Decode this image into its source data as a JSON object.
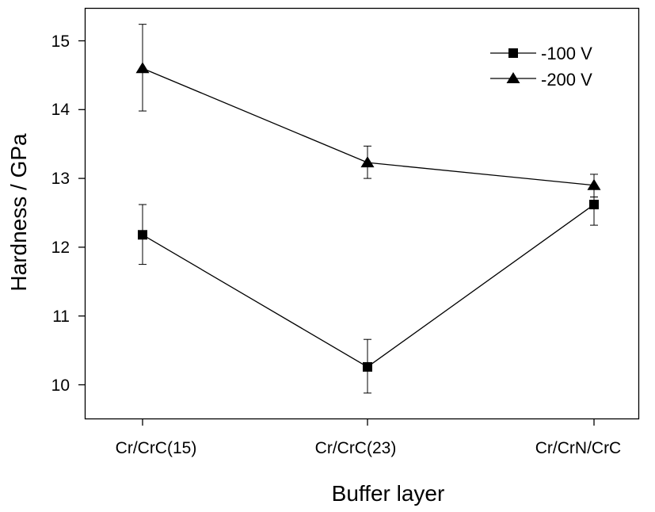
{
  "chart_data": {
    "type": "line",
    "xlabel": "Buffer layer",
    "ylabel": "Hardness / GPa",
    "categories": [
      "Cr/CrC(15)",
      "Cr/CrC(23)",
      "Cr/CrN/CrC"
    ],
    "ylim": [
      9.6,
      15.5
    ],
    "yticks": [
      "10",
      "11",
      "12",
      "13",
      "14",
      "15"
    ],
    "grid": false,
    "legend_position": "top-right",
    "series": [
      {
        "name": "-100 V",
        "marker": "square",
        "values": [
          12.18,
          10.26,
          12.62
        ],
        "err_low": [
          11.75,
          9.88,
          12.32
        ],
        "err_high": [
          12.62,
          10.66,
          12.73
        ]
      },
      {
        "name": "-200 V",
        "marker": "triangle",
        "values": [
          14.6,
          13.23,
          12.9
        ],
        "err_low": [
          13.98,
          13.0,
          12.73
        ],
        "err_high": [
          15.24,
          13.47,
          13.06
        ]
      }
    ]
  }
}
